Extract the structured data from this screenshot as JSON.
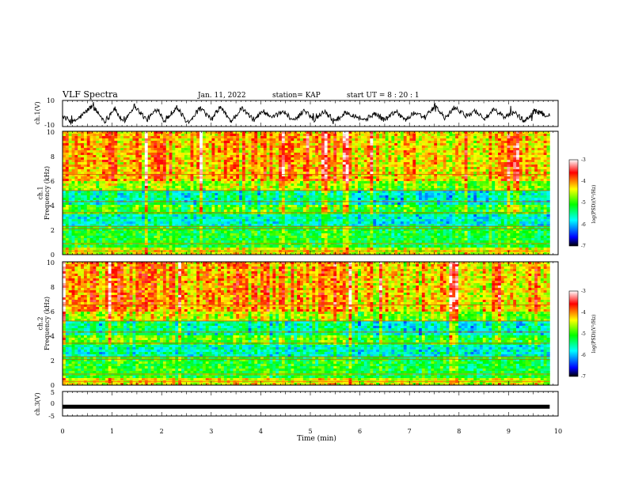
{
  "header": {
    "title": "VLF Spectra",
    "date": "Jan. 11, 2022",
    "station": "station= KAP",
    "start_ut": "start  UT =   8 : 20 : 1"
  },
  "chart_data": [
    {
      "type": "line",
      "ylabel": "ch.1(V)",
      "ylim": [
        -10,
        10
      ],
      "y_ticks": [
        "10",
        "-10"
      ],
      "xlim": [
        0,
        10
      ],
      "data_end_min": 9.83,
      "series": [
        {
          "color": "#000000",
          "x": [
            0,
            0.2,
            0.38,
            0.6,
            0.85,
            1.05,
            1.22,
            1.45,
            1.7,
            1.92,
            2.06,
            2.3,
            2.52,
            2.78,
            3.0,
            3.18,
            3.4,
            3.62,
            3.85,
            4.05,
            4.22,
            4.45,
            4.68,
            4.88,
            5.08,
            5.28,
            5.5,
            5.72,
            5.92,
            6.1,
            6.3,
            6.5,
            6.72,
            6.92,
            7.12,
            7.32,
            7.52,
            7.72,
            7.92,
            8.12,
            8.32,
            8.52,
            8.72,
            8.92,
            9.12,
            9.32,
            9.52,
            9.72,
            9.83
          ],
          "y": [
            -2,
            -7,
            -2,
            6,
            -6,
            4,
            -7,
            6,
            -5,
            4,
            -6,
            5,
            -7,
            4,
            -5,
            5,
            -6,
            4,
            -5,
            2,
            -4,
            2,
            -6,
            3,
            -5,
            2,
            -6,
            1,
            -2,
            -5,
            0,
            -5,
            2,
            -5,
            1,
            -3,
            6,
            -4,
            5,
            -2,
            2,
            -4,
            3,
            -3,
            1,
            -6,
            2,
            -1,
            -1
          ]
        }
      ]
    },
    {
      "type": "heatmap",
      "ylabel": "ch.1\nFrequency (kHz)",
      "xlim": [
        0,
        10
      ],
      "ylim": [
        0,
        10
      ],
      "y_ticks": [
        "0",
        "2",
        "4",
        "6",
        "8",
        "10"
      ],
      "data_end_min": 9.83,
      "colorbar": {
        "label": "log(PSD)(V²/Hz)",
        "range": [
          -7,
          -3
        ],
        "ticks": [
          "-3",
          "-4",
          "-5",
          "-6",
          "-7"
        ],
        "colors": [
          "#000000",
          "#0000ff",
          "#00ffff",
          "#00ff00",
          "#ffff00",
          "#ff0000",
          "#ffffff"
        ]
      }
    },
    {
      "type": "heatmap",
      "ylabel": "ch.2\nFrequency (kHz)",
      "xlim": [
        0,
        10
      ],
      "ylim": [
        0,
        10
      ],
      "y_ticks": [
        "0",
        "2",
        "4",
        "6",
        "8",
        "10"
      ],
      "data_end_min": 9.83,
      "colorbar": {
        "label": "log(PSD)(V²/Hz)",
        "range": [
          -7,
          -3
        ],
        "ticks": [
          "-3",
          "-4",
          "-5",
          "-6",
          "-7"
        ],
        "colors": [
          "#000000",
          "#0000ff",
          "#00ffff",
          "#00ff00",
          "#ffff00",
          "#ff0000",
          "#ffffff"
        ]
      }
    },
    {
      "type": "line",
      "ylabel": "ch.3(V)",
      "ylim": [
        -5,
        5
      ],
      "y_ticks": [
        "5",
        "0",
        "-5"
      ],
      "xlim": [
        0,
        10
      ],
      "data_end_min": 9.83,
      "series": [
        {
          "color": "#000000",
          "x": [
            0,
            9.83
          ],
          "y": [
            -1.2,
            -1.2
          ]
        }
      ]
    }
  ],
  "xaxis": {
    "label": "Time (min)",
    "ticks": [
      "0",
      "1",
      "2",
      "3",
      "4",
      "5",
      "6",
      "7",
      "8",
      "9",
      "10"
    ]
  }
}
